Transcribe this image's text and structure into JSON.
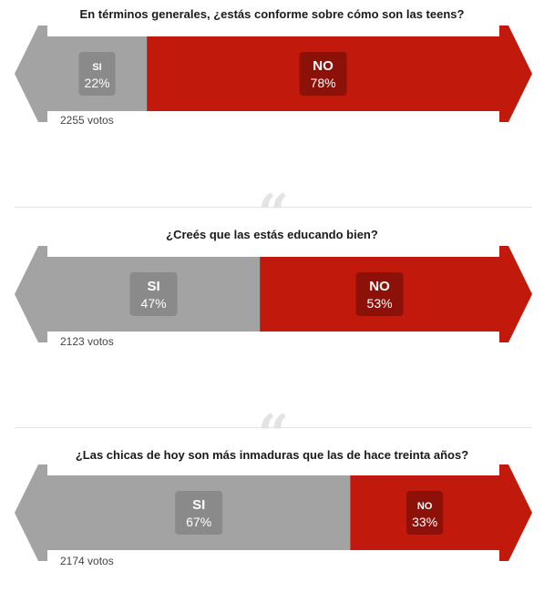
{
  "chart_data": [
    {
      "type": "bar",
      "title": "En términos generales, ¿estás conforme sobre cómo son las teens?",
      "categories": [
        "SI",
        "NO"
      ],
      "values": [
        22,
        78
      ],
      "value_labels": [
        "22%",
        "78%"
      ],
      "votes": "2255 votos"
    },
    {
      "type": "bar",
      "title": "¿Creés que las estás educando bien?",
      "categories": [
        "SI",
        "NO"
      ],
      "values": [
        47,
        53
      ],
      "value_labels": [
        "47%",
        "53%"
      ],
      "votes": "2123 votos"
    },
    {
      "type": "bar",
      "title": "¿Las chicas de hoy son más inmaduras que las de hace treinta años?",
      "categories": [
        "SI",
        "NO"
      ],
      "values": [
        67,
        33
      ],
      "value_labels": [
        "67%",
        "33%"
      ],
      "votes": "2174 votos"
    }
  ],
  "colors": {
    "si": "#a3a3a3",
    "no": "#c1190b",
    "si_badge": "#8a8a8a",
    "no_badge": "#8c1209"
  },
  "quote_glyph": "“"
}
